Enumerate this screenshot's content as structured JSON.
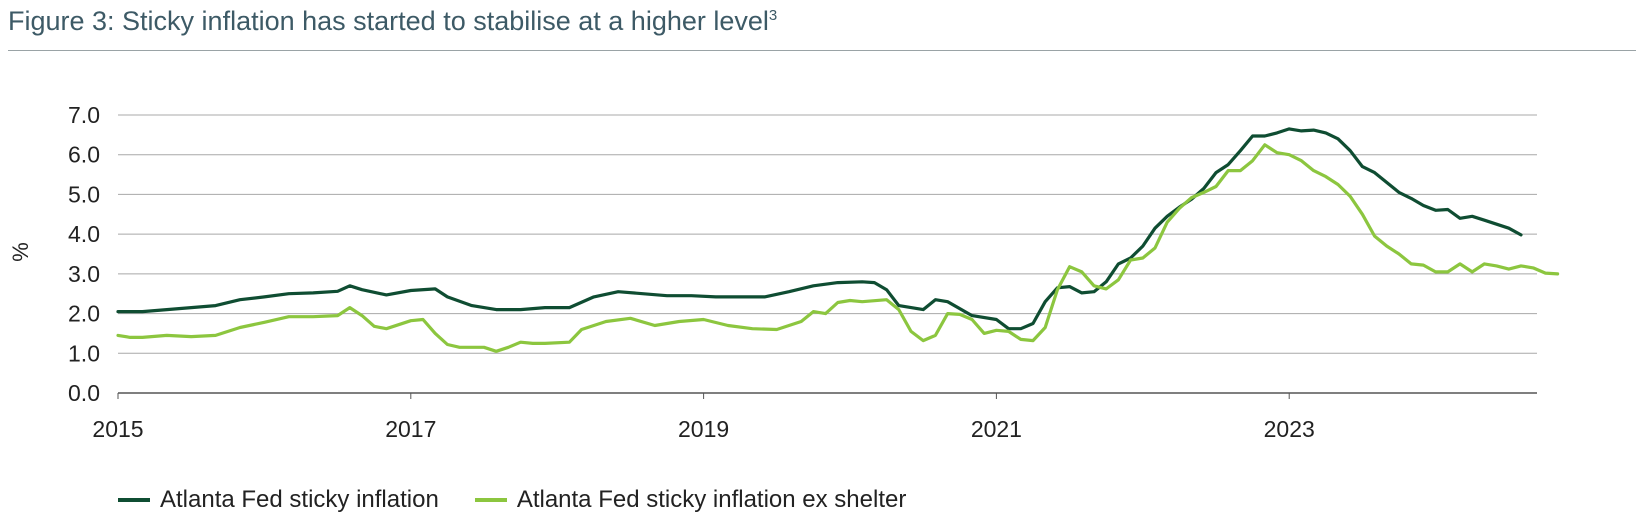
{
  "title": "Figure 3: Sticky inflation has started to stabilise at a higher level",
  "title_sup": "3",
  "colors": {
    "sticky": "#0f4d32",
    "ex_shelter": "#8cc63f",
    "grid": "#a8a8a8",
    "axis": "#555555"
  },
  "chart_data": {
    "type": "line",
    "ylabel": "%",
    "xlabel": "",
    "ylim": [
      0,
      7
    ],
    "yticks": [
      "0.0",
      "1.0",
      "2.0",
      "3.0",
      "4.0",
      "5.0",
      "6.0",
      "7.0"
    ],
    "xlim": [
      "2015-01",
      "2024-08"
    ],
    "xticks": [
      "2015",
      "2017",
      "2019",
      "2021",
      "2023"
    ],
    "grid": true,
    "legend": "bottom-left",
    "series": [
      {
        "name": "Atlanta Fed sticky inflation",
        "color": "#0f4d32",
        "points": [
          [
            "2015-01",
            2.05
          ],
          [
            "2015-03",
            2.05
          ],
          [
            "2015-05",
            2.1
          ],
          [
            "2015-07",
            2.15
          ],
          [
            "2015-09",
            2.2
          ],
          [
            "2015-11",
            2.35
          ],
          [
            "2016-01",
            2.42
          ],
          [
            "2016-03",
            2.5
          ],
          [
            "2016-05",
            2.52
          ],
          [
            "2016-07",
            2.56
          ],
          [
            "2016-08",
            2.7
          ],
          [
            "2016-09",
            2.6
          ],
          [
            "2016-11",
            2.47
          ],
          [
            "2017-01",
            2.58
          ],
          [
            "2017-03",
            2.62
          ],
          [
            "2017-04",
            2.42
          ],
          [
            "2017-06",
            2.2
          ],
          [
            "2017-08",
            2.1
          ],
          [
            "2017-10",
            2.1
          ],
          [
            "2017-12",
            2.15
          ],
          [
            "2018-02",
            2.15
          ],
          [
            "2018-04",
            2.42
          ],
          [
            "2018-06",
            2.55
          ],
          [
            "2018-08",
            2.5
          ],
          [
            "2018-10",
            2.45
          ],
          [
            "2018-12",
            2.45
          ],
          [
            "2019-02",
            2.42
          ],
          [
            "2019-04",
            2.42
          ],
          [
            "2019-06",
            2.42
          ],
          [
            "2019-08",
            2.55
          ],
          [
            "2019-10",
            2.7
          ],
          [
            "2019-12",
            2.78
          ],
          [
            "2020-02",
            2.8
          ],
          [
            "2020-03",
            2.78
          ],
          [
            "2020-04",
            2.6
          ],
          [
            "2020-05",
            2.2
          ],
          [
            "2020-07",
            2.1
          ],
          [
            "2020-08",
            2.35
          ],
          [
            "2020-09",
            2.3
          ],
          [
            "2020-11",
            1.95
          ],
          [
            "2021-01",
            1.85
          ],
          [
            "2021-02",
            1.62
          ],
          [
            "2021-03",
            1.62
          ],
          [
            "2021-04",
            1.75
          ],
          [
            "2021-05",
            2.3
          ],
          [
            "2021-06",
            2.65
          ],
          [
            "2021-07",
            2.68
          ],
          [
            "2021-08",
            2.52
          ],
          [
            "2021-09",
            2.55
          ],
          [
            "2021-10",
            2.8
          ],
          [
            "2021-11",
            3.25
          ],
          [
            "2021-12",
            3.4
          ],
          [
            "2022-01",
            3.7
          ],
          [
            "2022-02",
            4.15
          ],
          [
            "2022-03",
            4.45
          ],
          [
            "2022-04",
            4.68
          ],
          [
            "2022-05",
            4.88
          ],
          [
            "2022-06",
            5.15
          ],
          [
            "2022-07",
            5.55
          ],
          [
            "2022-08",
            5.75
          ],
          [
            "2022-09",
            6.1
          ],
          [
            "2022-10",
            6.47
          ],
          [
            "2022-11",
            6.47
          ],
          [
            "2022-12",
            6.55
          ],
          [
            "2023-01",
            6.65
          ],
          [
            "2023-02",
            6.6
          ],
          [
            "2023-03",
            6.62
          ],
          [
            "2023-04",
            6.55
          ],
          [
            "2023-05",
            6.4
          ],
          [
            "2023-06",
            6.1
          ],
          [
            "2023-07",
            5.7
          ],
          [
            "2023-08",
            5.55
          ],
          [
            "2023-09",
            5.3
          ],
          [
            "2023-10",
            5.05
          ],
          [
            "2023-11",
            4.9
          ],
          [
            "2023-12",
            4.72
          ],
          [
            "2024-01",
            4.6
          ],
          [
            "2024-02",
            4.62
          ],
          [
            "2024-03",
            4.4
          ],
          [
            "2024-04",
            4.45
          ],
          [
            "2024-05",
            4.35
          ],
          [
            "2024-06",
            4.25
          ],
          [
            "2024-07",
            4.15
          ],
          [
            "2024-08",
            3.98
          ]
        ]
      },
      {
        "name": "Atlanta Fed sticky inflation ex shelter",
        "color": "#8cc63f",
        "points": [
          [
            "2015-01",
            1.45
          ],
          [
            "2015-02",
            1.4
          ],
          [
            "2015-03",
            1.4
          ],
          [
            "2015-05",
            1.45
          ],
          [
            "2015-07",
            1.42
          ],
          [
            "2015-09",
            1.45
          ],
          [
            "2015-11",
            1.65
          ],
          [
            "2016-01",
            1.78
          ],
          [
            "2016-03",
            1.92
          ],
          [
            "2016-05",
            1.92
          ],
          [
            "2016-07",
            1.95
          ],
          [
            "2016-08",
            2.15
          ],
          [
            "2016-09",
            1.95
          ],
          [
            "2016-10",
            1.68
          ],
          [
            "2016-11",
            1.62
          ],
          [
            "2017-01",
            1.82
          ],
          [
            "2017-02",
            1.85
          ],
          [
            "2017-03",
            1.5
          ],
          [
            "2017-04",
            1.22
          ],
          [
            "2017-05",
            1.15
          ],
          [
            "2017-07",
            1.15
          ],
          [
            "2017-08",
            1.05
          ],
          [
            "2017-09",
            1.15
          ],
          [
            "2017-10",
            1.28
          ],
          [
            "2017-11",
            1.25
          ],
          [
            "2017-12",
            1.25
          ],
          [
            "2018-02",
            1.28
          ],
          [
            "2018-03",
            1.6
          ],
          [
            "2018-05",
            1.8
          ],
          [
            "2018-07",
            1.88
          ],
          [
            "2018-09",
            1.7
          ],
          [
            "2018-11",
            1.8
          ],
          [
            "2019-01",
            1.85
          ],
          [
            "2019-03",
            1.7
          ],
          [
            "2019-05",
            1.62
          ],
          [
            "2019-07",
            1.6
          ],
          [
            "2019-09",
            1.8
          ],
          [
            "2019-10",
            2.05
          ],
          [
            "2019-11",
            2.0
          ],
          [
            "2019-12",
            2.28
          ],
          [
            "2020-01",
            2.33
          ],
          [
            "2020-02",
            2.3
          ],
          [
            "2020-04",
            2.35
          ],
          [
            "2020-05",
            2.1
          ],
          [
            "2020-06",
            1.55
          ],
          [
            "2020-07",
            1.32
          ],
          [
            "2020-08",
            1.45
          ],
          [
            "2020-09",
            2.0
          ],
          [
            "2020-10",
            1.98
          ],
          [
            "2020-11",
            1.85
          ],
          [
            "2020-12",
            1.5
          ],
          [
            "2021-01",
            1.58
          ],
          [
            "2021-02",
            1.55
          ],
          [
            "2021-03",
            1.35
          ],
          [
            "2021-04",
            1.32
          ],
          [
            "2021-05",
            1.65
          ],
          [
            "2021-06",
            2.6
          ],
          [
            "2021-07",
            3.18
          ],
          [
            "2021-08",
            3.05
          ],
          [
            "2021-09",
            2.7
          ],
          [
            "2021-10",
            2.62
          ],
          [
            "2021-11",
            2.85
          ],
          [
            "2021-12",
            3.35
          ],
          [
            "2022-01",
            3.4
          ],
          [
            "2022-02",
            3.65
          ],
          [
            "2022-03",
            4.3
          ],
          [
            "2022-04",
            4.65
          ],
          [
            "2022-05",
            4.92
          ],
          [
            "2022-06",
            5.05
          ],
          [
            "2022-07",
            5.2
          ],
          [
            "2022-08",
            5.6
          ],
          [
            "2022-09",
            5.6
          ],
          [
            "2022-10",
            5.85
          ],
          [
            "2022-11",
            6.25
          ],
          [
            "2022-12",
            6.05
          ],
          [
            "2023-01",
            6.0
          ],
          [
            "2023-02",
            5.85
          ],
          [
            "2023-03",
            5.6
          ],
          [
            "2023-04",
            5.45
          ],
          [
            "2023-05",
            5.25
          ],
          [
            "2023-06",
            4.95
          ],
          [
            "2023-07",
            4.5
          ],
          [
            "2023-08",
            3.95
          ],
          [
            "2023-09",
            3.7
          ],
          [
            "2023-10",
            3.5
          ],
          [
            "2023-11",
            3.25
          ],
          [
            "2023-12",
            3.22
          ],
          [
            "2024-01",
            3.05
          ],
          [
            "2024-02",
            3.05
          ],
          [
            "2024-03",
            3.25
          ],
          [
            "2024-04",
            3.05
          ],
          [
            "2024-05",
            3.25
          ],
          [
            "2024-06",
            3.2
          ],
          [
            "2024-07",
            3.12
          ],
          [
            "2024-08",
            3.2
          ],
          [
            "2024-09",
            3.15
          ],
          [
            "2024-10",
            3.02
          ],
          [
            "2024-11",
            3.0
          ]
        ]
      }
    ]
  },
  "legend": [
    {
      "label": "Atlanta Fed sticky inflation",
      "color": "#0f4d32"
    },
    {
      "label": "Atlanta Fed sticky inflation ex shelter",
      "color": "#8cc63f"
    }
  ]
}
